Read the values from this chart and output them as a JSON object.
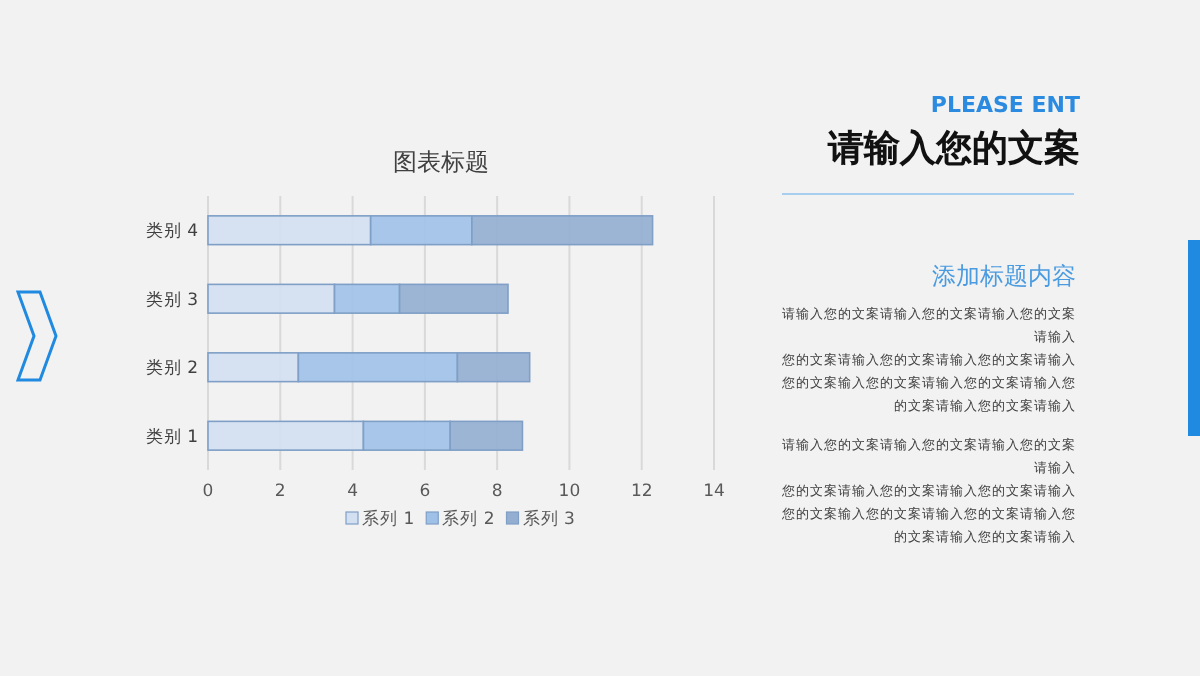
{
  "chart_data": {
    "type": "bar",
    "orientation": "horizontal",
    "stacked": true,
    "title": "图表标题",
    "categories": [
      "类别 4",
      "类别 3",
      "类别 2",
      "类别 1"
    ],
    "series": [
      {
        "name": "系列 1",
        "color": "#d3e0f2",
        "values": [
          4.5,
          3.5,
          2.5,
          4.3
        ]
      },
      {
        "name": "系列 2",
        "color": "#9fc1e8",
        "values": [
          2.8,
          1.8,
          4.4,
          2.4
        ]
      },
      {
        "name": "系列 3",
        "color": "#93aed0",
        "values": [
          5,
          3,
          2,
          2
        ]
      }
    ],
    "xlim": [
      0,
      14
    ],
    "xticks": [
      0,
      2,
      4,
      6,
      8,
      10,
      12,
      14
    ],
    "grid": "x",
    "legend": "bottom",
    "annotations": [
      "PLEASE ENT",
      "请输入您的文案",
      "添加标题内容",
      "请输入您的文案请输入您的文案请输入您的文案",
      "请输入",
      "您的文案请输入您的文案请输入您的文案请输入",
      "您的文案输入您的文案请输入您的文案请输入您",
      "的文案请输入您的文案请输入",
      "请输入您的文案请输入您的文案请输入您的文案",
      "请输入",
      "您的文案请输入您的文案请输入您的文案请输入",
      "您的文案输入您的文案请输入您的文案请输入您",
      "的文案请输入您的文案请输入"
    ]
  }
}
